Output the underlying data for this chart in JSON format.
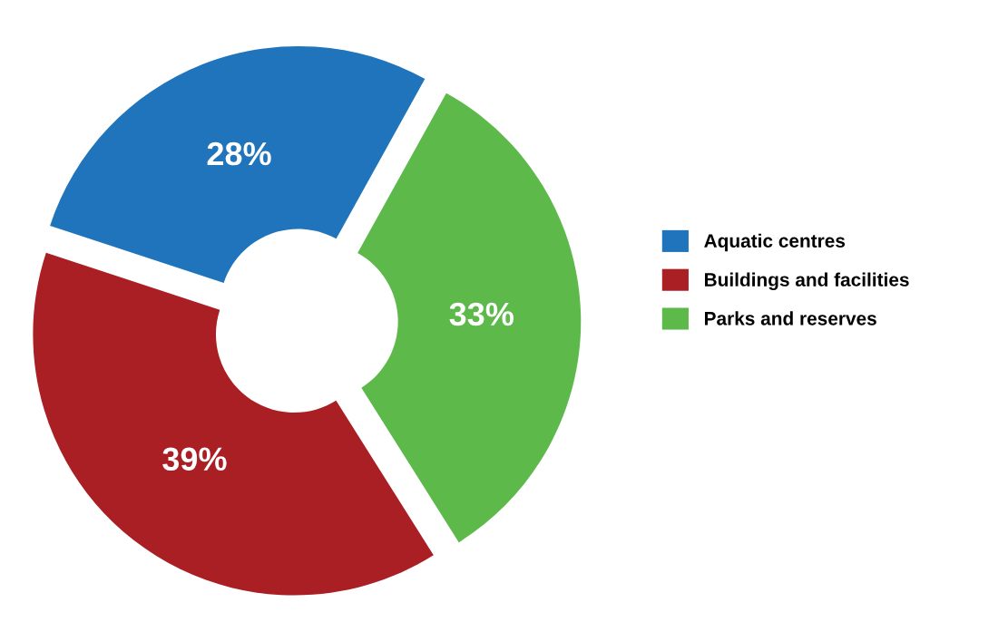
{
  "chart_data": {
    "type": "donut",
    "categories": [
      "Aquatic centres",
      "Buildings and facilities",
      "Parks and reserves"
    ],
    "values": [
      28,
      39,
      33
    ],
    "colors": [
      "#1f74bb",
      "#a91f24",
      "#5cb94a"
    ],
    "value_labels": [
      "28%",
      "39%",
      "33%"
    ],
    "legend": "right"
  }
}
